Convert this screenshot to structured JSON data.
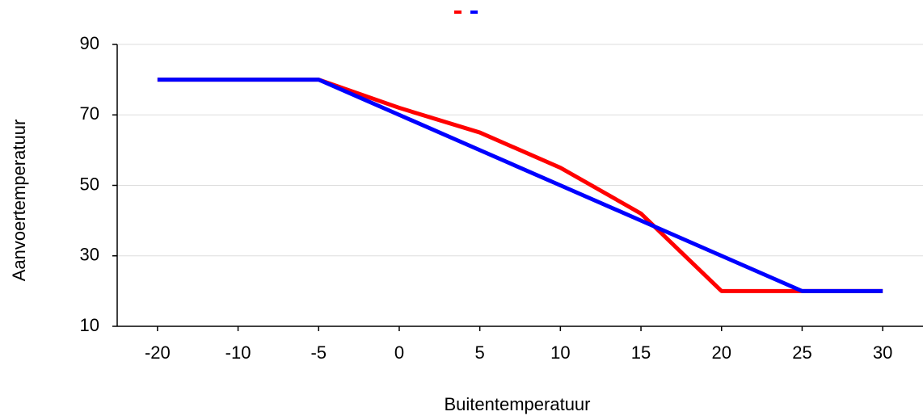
{
  "chart_data": {
    "type": "line",
    "x_label": "Buitentemperatuur",
    "y_label": "Aanvoertemperatuur",
    "categories": [
      "-20",
      "-10",
      "-5",
      "0",
      "5",
      "10",
      "15",
      "20",
      "25",
      "30"
    ],
    "series": [
      {
        "color": "#ff0000",
        "values": [
          80,
          80,
          80,
          72,
          65,
          55,
          42,
          20,
          20,
          20
        ]
      },
      {
        "color": "#0000ff",
        "values": [
          80,
          80,
          80,
          70,
          60,
          50,
          40,
          30,
          20,
          20
        ]
      }
    ],
    "ylim": [
      10,
      90
    ],
    "yticks": [
      10,
      30,
      50,
      70,
      90
    ],
    "grid": true
  }
}
